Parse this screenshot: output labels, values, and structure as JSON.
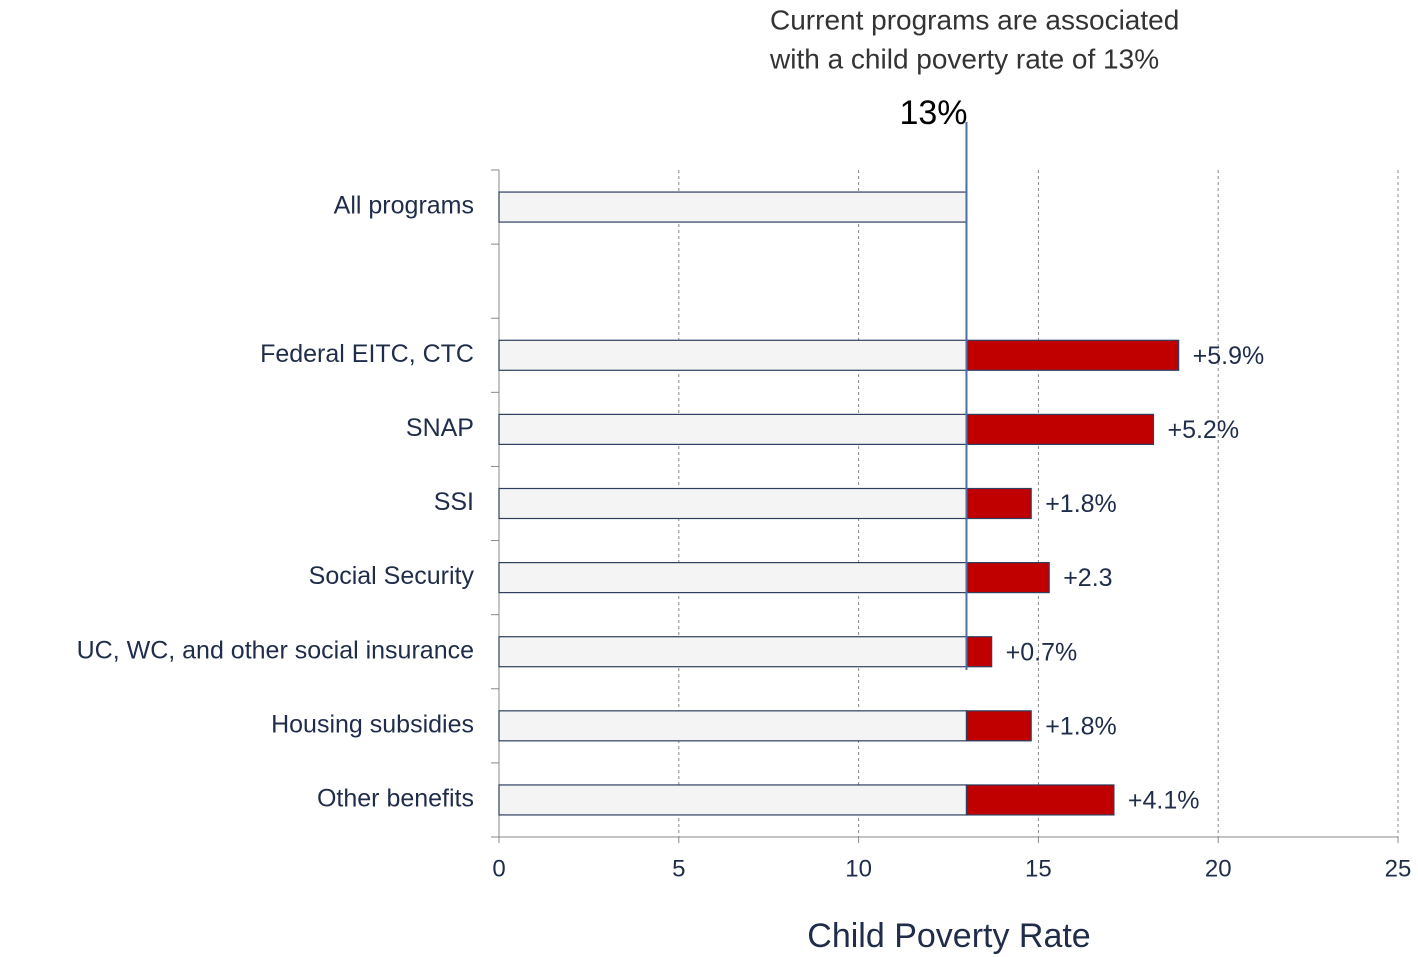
{
  "chart_data": {
    "type": "stacked_barh",
    "annotation": [
      "Current programs are associated",
      "with a child poverty rate of 13%"
    ],
    "reference_line": {
      "value": 13,
      "label": "13%"
    },
    "categories": [
      "All programs",
      null,
      "Federal EITC, CTC",
      "SNAP",
      "SSI",
      "Social Security",
      "UC, WC, and other social insurance",
      "Housing subsidies",
      "Other benefits"
    ],
    "series": [
      {
        "color": "#f4f4f4",
        "values": [
          13,
          null,
          13,
          13,
          13,
          13,
          13,
          13,
          13
        ]
      },
      {
        "color": "#c00000",
        "values": [
          null,
          null,
          5.9,
          5.2,
          1.8,
          2.3,
          0.7,
          1.8,
          4.1
        ],
        "value_labels": [
          null,
          null,
          "+5.9%",
          "+5.2%",
          "+1.8%",
          "+2.3",
          "+0.7%",
          "+1.8%",
          "+4.1%"
        ]
      }
    ],
    "xlim": [
      0,
      25
    ],
    "xticks": [
      0,
      5,
      10,
      15,
      20,
      25
    ],
    "xlabel": "Child Poverty Rate",
    "grid": true
  }
}
